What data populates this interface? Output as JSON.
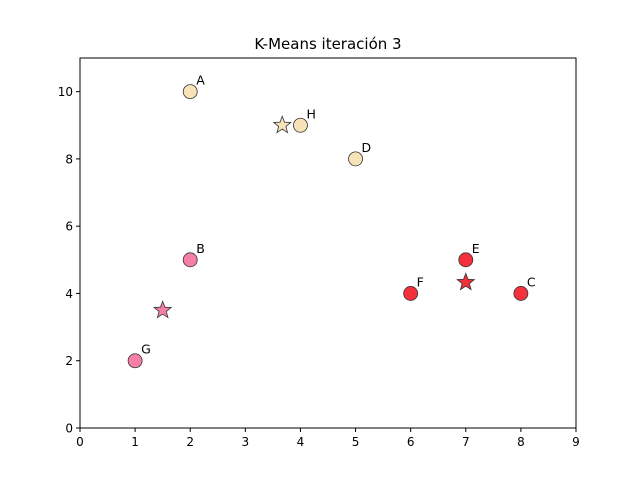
{
  "chart_data": {
    "type": "scatter",
    "title": "K-Means iteración 3",
    "xlabel": "",
    "ylabel": "",
    "xlim": [
      0,
      9
    ],
    "ylim": [
      0,
      11
    ],
    "xticks": [
      "0",
      "1",
      "2",
      "3",
      "4",
      "5",
      "6",
      "7",
      "8",
      "9"
    ],
    "yticks": [
      "0",
      "2",
      "4",
      "6",
      "8",
      "10"
    ],
    "grid": false,
    "points": [
      {
        "label": "A",
        "x": 2,
        "y": 10,
        "cluster": 0
      },
      {
        "label": "H",
        "x": 4,
        "y": 9,
        "cluster": 0
      },
      {
        "label": "D",
        "x": 5,
        "y": 8,
        "cluster": 0
      },
      {
        "label": "B",
        "x": 2,
        "y": 5,
        "cluster": 1
      },
      {
        "label": "G",
        "x": 1,
        "y": 2,
        "cluster": 1
      },
      {
        "label": "E",
        "x": 7,
        "y": 5,
        "cluster": 2
      },
      {
        "label": "F",
        "x": 6,
        "y": 4,
        "cluster": 2
      },
      {
        "label": "C",
        "x": 8,
        "y": 4,
        "cluster": 2
      }
    ],
    "centroids": [
      {
        "x": 3.67,
        "y": 9.0,
        "cluster": 0
      },
      {
        "x": 1.5,
        "y": 3.5,
        "cluster": 1
      },
      {
        "x": 7.0,
        "y": 4.33,
        "cluster": 2
      }
    ],
    "cluster_colors": [
      "#f8e3b8",
      "#f67fa8",
      "#f5303d"
    ],
    "marker_edge_color": "#333333"
  }
}
